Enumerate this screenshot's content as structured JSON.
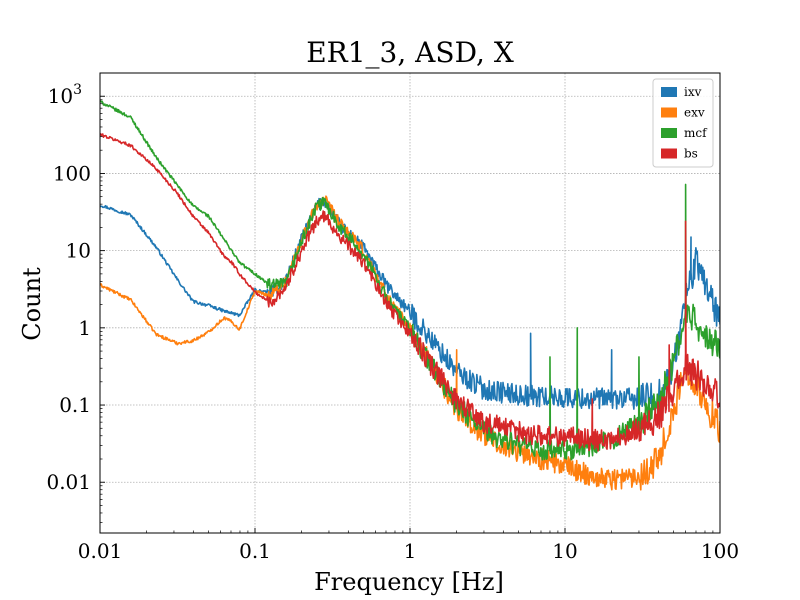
{
  "chart_data": {
    "type": "line",
    "title": "ER1_3, ASD, X",
    "xlabel": "Frequency [Hz]",
    "ylabel": "Count",
    "xscale": "log",
    "yscale": "log",
    "xlim": [
      0.01,
      100
    ],
    "ylim": [
      0.0022,
      2000
    ],
    "grid": true,
    "legend_placement": "top-right",
    "x_ticks": [
      {
        "value": 0.01,
        "label": "0.01"
      },
      {
        "value": 0.1,
        "label": "0.1"
      },
      {
        "value": 1,
        "label": "1"
      },
      {
        "value": 10,
        "label": "10"
      },
      {
        "value": 100,
        "label": "100"
      }
    ],
    "y_ticks": [
      {
        "value": 0.01,
        "label": "0.01"
      },
      {
        "value": 0.1,
        "label": "0.1"
      },
      {
        "value": 1,
        "label": "1"
      },
      {
        "value": 10,
        "label": "10"
      },
      {
        "value": 100,
        "label": "100"
      },
      {
        "value": 1000,
        "label": "10",
        "sup": "3"
      }
    ],
    "x": [
      0.01,
      0.0158,
      0.0231,
      0.0316,
      0.0398,
      0.0501,
      0.0631,
      0.0708,
      0.0794,
      0.1,
      0.126,
      0.158,
      0.2,
      0.251,
      0.282,
      0.355,
      0.5,
      0.708,
      1,
      1.41,
      2,
      3,
      5,
      7,
      10,
      15,
      20,
      30,
      40,
      50,
      60,
      70,
      80,
      100
    ],
    "series": [
      {
        "name": "ixv",
        "color": "#1f77b4",
        "values": [
          39,
          29,
          11,
          4.2,
          2.2,
          1.95,
          1.65,
          1.55,
          1.45,
          3.1,
          2.8,
          4.2,
          14,
          38,
          44,
          21,
          11,
          3.5,
          1.6,
          0.65,
          0.27,
          0.16,
          0.135,
          0.13,
          0.125,
          0.12,
          0.12,
          0.12,
          0.13,
          0.3,
          2.5,
          7,
          4,
          1.2
        ]
      },
      {
        "name": "exv",
        "color": "#ff7f0e",
        "values": [
          3.6,
          2.3,
          0.82,
          0.63,
          0.68,
          0.88,
          1.35,
          1.2,
          0.95,
          3.0,
          2.6,
          4.0,
          14,
          40,
          45,
          22,
          10,
          2.6,
          0.95,
          0.3,
          0.09,
          0.04,
          0.025,
          0.02,
          0.016,
          0.012,
          0.011,
          0.012,
          0.02,
          0.08,
          0.3,
          0.2,
          0.1,
          0.05
        ]
      },
      {
        "name": "mcf",
        "color": "#2ca02c",
        "values": [
          850,
          530,
          160,
          70,
          38,
          28,
          14,
          10,
          7,
          5.0,
          3.5,
          3.7,
          13,
          38,
          42,
          20,
          9,
          2.4,
          0.95,
          0.3,
          0.1,
          0.045,
          0.03,
          0.026,
          0.025,
          0.03,
          0.035,
          0.06,
          0.1,
          0.35,
          1.5,
          1.2,
          0.7,
          0.6
        ]
      },
      {
        "name": "bs",
        "color": "#d62728",
        "values": [
          320,
          230,
          115,
          55,
          28,
          17,
          8.5,
          7.0,
          5.0,
          2.9,
          2.1,
          3.4,
          10,
          25,
          28,
          15,
          7,
          2.0,
          0.85,
          0.3,
          0.12,
          0.06,
          0.045,
          0.04,
          0.04,
          0.035,
          0.035,
          0.05,
          0.07,
          0.15,
          0.3,
          0.25,
          0.2,
          0.12
        ]
      }
    ],
    "peaks": [
      {
        "series": "exv",
        "x": 2.0,
        "y": 0.52
      },
      {
        "series": "ixv",
        "x": 6.0,
        "y": 0.85
      },
      {
        "series": "mcf",
        "x": 8.0,
        "y": 0.42
      },
      {
        "series": "mcf",
        "x": 12.0,
        "y": 1.0
      },
      {
        "series": "bs",
        "x": 15.0,
        "y": 0.12
      },
      {
        "series": "ixv",
        "x": 20.0,
        "y": 0.52
      },
      {
        "series": "mcf",
        "x": 30.0,
        "y": 0.42
      },
      {
        "series": "bs",
        "x": 47.0,
        "y": 0.6
      },
      {
        "series": "mcf",
        "x": 60.0,
        "y": 72
      },
      {
        "series": "bs",
        "x": 60.0,
        "y": 24
      },
      {
        "series": "ixv",
        "x": 65.0,
        "y": 15
      }
    ]
  }
}
